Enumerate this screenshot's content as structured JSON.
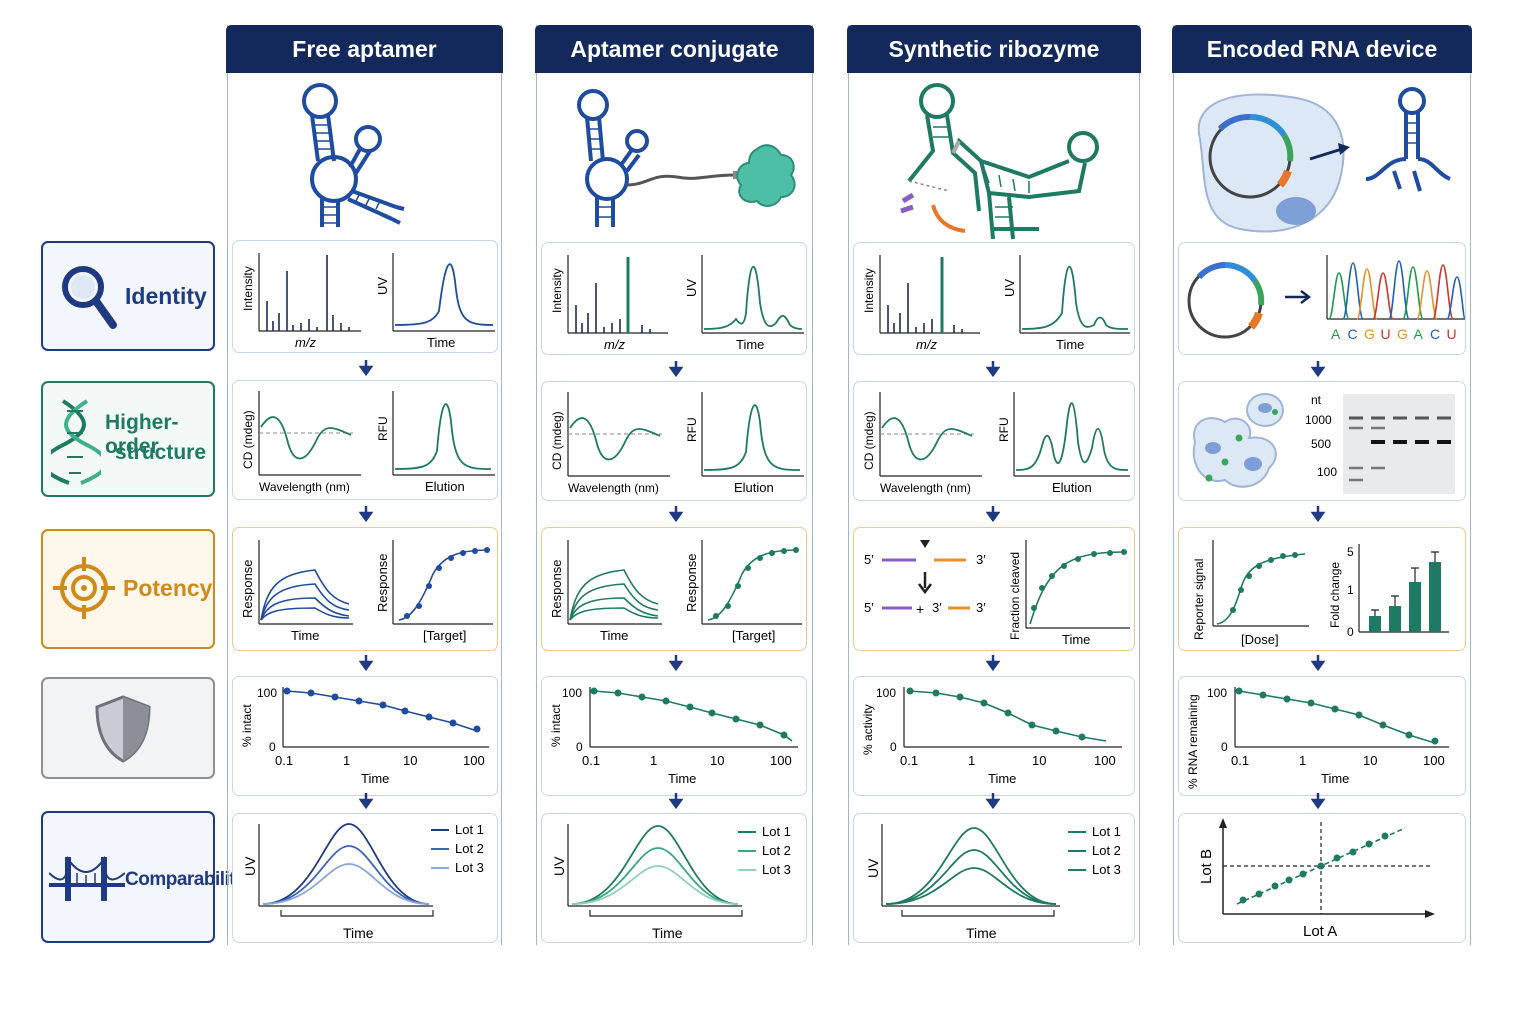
{
  "columns": [
    {
      "title": "Free aptamer",
      "accent": "#1f4ba0"
    },
    {
      "title": "Aptamer conjugate",
      "accent": "#1e7a62"
    },
    {
      "title": "Synthetic ribozyme",
      "accent": "#1e7a62"
    },
    {
      "title": "Encoded RNA device",
      "accent": "#1e7a62"
    }
  ],
  "rows": [
    {
      "label": "Identity",
      "icon": "magnifier-icon",
      "color": "#1f3a82"
    },
    {
      "label": "Higher-order structure",
      "label_line1": "Higher-order",
      "label_line2": "structure",
      "icon": "dna-helix-icon",
      "color": "#1e7a62"
    },
    {
      "label": "Potency",
      "icon": "target-icon",
      "color": "#d08a1a"
    },
    {
      "label": "",
      "icon": "shield-icon",
      "color": "#8a8f98"
    },
    {
      "label": "Comparability",
      "icon": "bridge-icon",
      "color": "#1f3a82"
    }
  ],
  "axes": {
    "intensity": "Intensity",
    "mz": "m/z",
    "uv": "UV",
    "time": "Time",
    "cd": "CD (mdeg)",
    "wavelength": "Wavelength (nm)",
    "rfu": "RFU",
    "elution": "Elution",
    "response": "Response",
    "target": "[Target]",
    "fraction_cleaved": "Fraction cleaved",
    "pct_intact": "% intact",
    "pct_activity": "% activity",
    "pct_rna_remaining": "% RNA remaining",
    "reporter_signal": "Reporter signal",
    "dose": "[Dose]",
    "fold_change": "Fold change",
    "lot_a": "Lot A",
    "lot_b": "Lot B",
    "nt": "nt"
  },
  "ticks": {
    "stability_y": [
      "100",
      "0"
    ],
    "stability_x": [
      "0.1",
      "1",
      "10",
      "100"
    ],
    "fold_y": [
      "5",
      "1",
      "0"
    ],
    "gel": [
      "1000",
      "500",
      "100"
    ]
  },
  "legend": [
    "Lot 1",
    "Lot 2",
    "Lot 3"
  ],
  "sequence": [
    "A",
    "C",
    "G",
    "U",
    "G",
    "A",
    "C",
    "U"
  ],
  "sequence_colors": [
    "#1e9a4a",
    "#1f5fc0",
    "#e8912a",
    "#d0342c",
    "#e8912a",
    "#1e9a4a",
    "#1f5fc0",
    "#d0342c"
  ],
  "cleavage": {
    "five": "5′",
    "three": "3′",
    "plus": "+"
  },
  "colors": {
    "navy": "#13295b",
    "blue": "#1f4ba0",
    "teal": "#1e7a62",
    "orange": "#d08a1a",
    "purple": "#8a5cc8",
    "panel_border": "#c8d6ea"
  }
}
